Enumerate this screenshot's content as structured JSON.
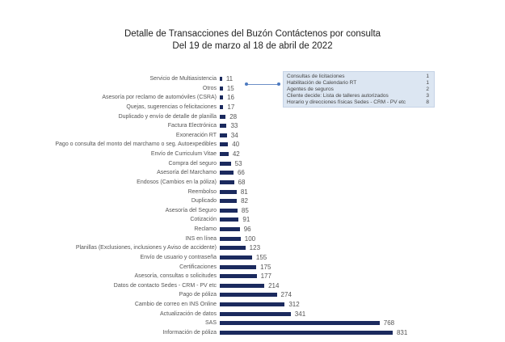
{
  "chart_data": {
    "type": "bar",
    "orientation": "horizontal",
    "title": "Detalle de Transacciones del Buzón Contáctenos por consulta",
    "subtitle": "Del 19 de marzo al 18 de abril de 2022",
    "xlabel": "",
    "ylabel": "",
    "grid": false,
    "bar_color": "#1b2a5e",
    "categories": [
      "Servicio de Multiasistencia",
      "Otros",
      "Asesoría por reclamo de automóviles (CSRA)",
      "Quejas, sugerencias o felicitaciones",
      "Duplicado y envío de detalle de planilla",
      "Factura Electrónica",
      "Exoneración RT",
      "Pago o consulta del monto del marchamo o seg. Autoexpedibles",
      "Envío de Curriculum Vitae",
      "Compra del seguro",
      "Asesoría del Marchamo",
      "Endosos (Cambios en la póliza)",
      "Reembolso",
      "Duplicado",
      "Asesoría del Seguro",
      "Cotización",
      "Reclamo",
      "INS en línea",
      "Planillas (Exclusiones, inclusiones y Aviso de accidente)",
      "Envío de usuario y contraseña",
      "Certificaciones",
      "Asesoría, consultas o solicitudes",
      "Datos de contacto Sedes - CRM - PV etc",
      "Pago de póliza",
      "Cambio de correo en INS Online",
      "Actualización de datos",
      "SAS",
      "Información de póliza"
    ],
    "values": [
      11,
      15,
      16,
      17,
      28,
      33,
      34,
      40,
      42,
      53,
      66,
      68,
      81,
      82,
      85,
      91,
      96,
      100,
      123,
      155,
      175,
      177,
      214,
      274,
      312,
      341,
      768,
      831
    ],
    "breakdown_of": "Otros",
    "breakdown": [
      {
        "label": "Consultas de licitaciones",
        "value": 1
      },
      {
        "label": "Habilitación de Calendario RT",
        "value": 1
      },
      {
        "label": "Agentes de seguros",
        "value": 2
      },
      {
        "label": "Cliente decide: Lista de talleres autorizados",
        "value": 3
      },
      {
        "label": "Horario y direcciones físicas Sedes - CRM - PV etc",
        "value": 8
      }
    ]
  }
}
